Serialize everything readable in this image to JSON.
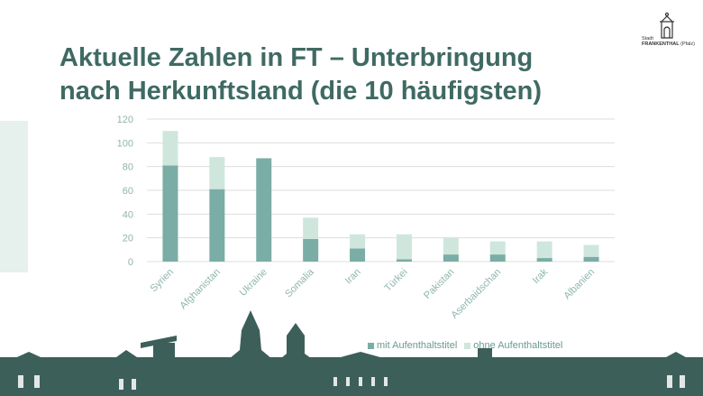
{
  "slide": {
    "title_line1": "Aktuelle Zahlen in FT – Unterbringung",
    "title_line2": "nach Herkunftsland (die 10 häufigsten)",
    "logo_line1": "Stadt",
    "logo_line2": "FRANKENTHAL",
    "logo_line3": "(Pfalz)"
  },
  "colors": {
    "accent": "#3f6a63",
    "series_with_title": "#7aada5",
    "series_without_title": "#cfe6dd",
    "skyline": "#3d5f5a",
    "side_bar": "#e6f0ec"
  },
  "chart_data": {
    "type": "bar",
    "stacked": true,
    "categories": [
      "Syrien",
      "Afghanistan",
      "Ukraine",
      "Somalia",
      "Iran",
      "Türkei",
      "Pakistan",
      "Aserbaidschan",
      "Irak",
      "Albanien"
    ],
    "series": [
      {
        "name": "mit Aufenthaltstitel",
        "values": [
          81,
          61,
          87,
          19,
          11,
          2,
          6,
          6,
          3,
          4
        ]
      },
      {
        "name": "ohne Aufenthaltstitel",
        "values": [
          29,
          27,
          0,
          18,
          12,
          21,
          14,
          11,
          14,
          10
        ]
      }
    ],
    "yticks": [
      0,
      20,
      40,
      60,
      80,
      100,
      120
    ],
    "ylim": [
      0,
      120
    ],
    "grid": true,
    "legend_position": "bottom-right"
  }
}
